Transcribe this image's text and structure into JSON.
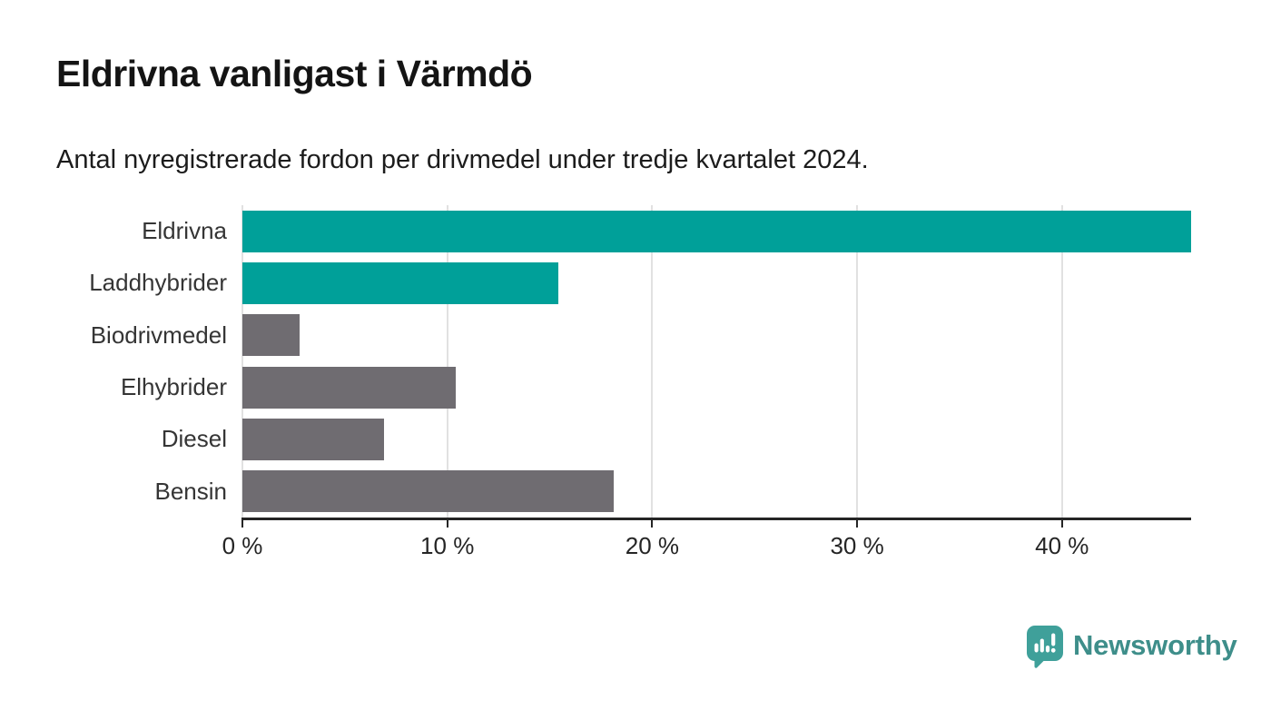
{
  "chart_data": {
    "type": "bar",
    "orientation": "horizontal",
    "title": "Eldrivna vanligast i Värmdö",
    "subtitle": "Antal nyregistrerade fordon per drivmedel under tredje kvartalet 2024.",
    "categories": [
      "Eldrivna",
      "Laddhybrider",
      "Biodrivmedel",
      "Elhybrider",
      "Diesel",
      "Bensin"
    ],
    "values": [
      46.3,
      15.4,
      2.8,
      10.4,
      6.9,
      18.1
    ],
    "unit": "%",
    "xlim": [
      0,
      46.3
    ],
    "xticks": [
      0,
      10,
      20,
      30,
      40
    ],
    "xtick_labels": [
      "0 %",
      "10 %",
      "20 %",
      "30 %",
      "40 %"
    ],
    "grid": true,
    "legend": "none",
    "bar_colors": [
      "#00A099",
      "#00A099",
      "#6F6C71",
      "#6F6C71",
      "#6F6C71",
      "#6F6C71"
    ],
    "colors": {
      "highlight": "#00A099",
      "default": "#6F6C71",
      "gridline": "#E1E1E1",
      "axis": "#252525"
    }
  },
  "brand": {
    "name": "Newsworthy",
    "icon": "newsworthy-badge-icon",
    "badge_color": "#3FA09A",
    "text_color": "#3E8E8A"
  }
}
